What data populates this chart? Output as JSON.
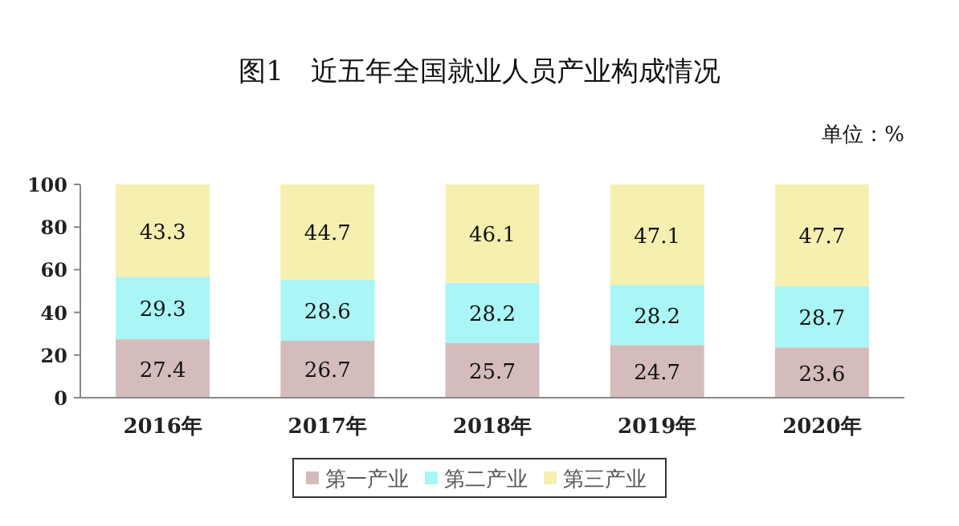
{
  "chart_data": {
    "type": "bar",
    "title": "图1　近五年全国就业人员产业构成情况",
    "annotations": [
      "单位：%"
    ],
    "categories": [
      "2016年",
      "2017年",
      "2018年",
      "2019年",
      "2020年"
    ],
    "stacked": true,
    "data_labels": true,
    "legend": "bottom",
    "grid": false,
    "ylim": [
      0,
      100
    ],
    "yticks": [
      0,
      20,
      40,
      60,
      80,
      100
    ],
    "series": [
      {
        "name": "第一产业",
        "color": "#d5bcbc",
        "values": [
          27.4,
          26.7,
          25.7,
          24.7,
          23.6
        ]
      },
      {
        "name": "第二产业",
        "color": "#aaf5f5",
        "values": [
          29.3,
          28.6,
          28.2,
          28.2,
          28.7
        ]
      },
      {
        "name": "第三产业",
        "color": "#f5f0b0",
        "values": [
          43.3,
          44.7,
          46.1,
          47.1,
          47.7
        ]
      }
    ]
  }
}
